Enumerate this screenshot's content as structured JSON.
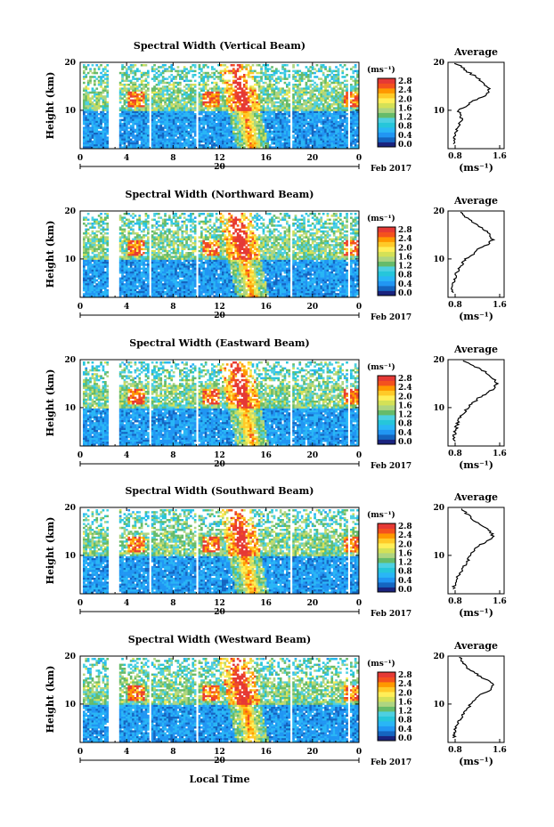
{
  "figure": {
    "date_label": "Feb 2017",
    "day_label": "20",
    "xlabel": "Local Time",
    "ylabel": "Height (km)",
    "units_label": "(ms⁻¹)",
    "avg_title": "Average",
    "avg_xlabel": "(ms⁻¹)",
    "colorbar_ticks": [
      "0.0",
      "0.4",
      "0.8",
      "1.2",
      "1.6",
      "2.0",
      "2.4",
      "2.8"
    ],
    "colorbar_colors": [
      "#1a237e",
      "#1565c0",
      "#2196f3",
      "#29b6f6",
      "#26c6da",
      "#4dd0e1",
      "#66bb6a",
      "#aed581",
      "#d4e157",
      "#ffee58",
      "#ffca28",
      "#ff9800",
      "#f4511e",
      "#e53935"
    ],
    "x_ticks": [
      "0",
      "4",
      "8",
      "12",
      "16",
      "20",
      "0"
    ],
    "y_ticks": [
      "20",
      "10"
    ],
    "avg_x_ticks": [
      "0.8",
      "1.6"
    ]
  },
  "chart_data": [
    {
      "type": "heatmap",
      "title": "Spectral Width (Vertical Beam)",
      "xlabel": "Local Time",
      "ylabel": "Height (km)",
      "xlim": [
        0,
        24
      ],
      "ylim": [
        2,
        20
      ],
      "colorbar_range": [
        0.0,
        2.8
      ],
      "enhancement": {
        "x_start": 13.0,
        "x_end": 15.0
      },
      "data_gaps_hours": [
        [
          2.3,
          3.3
        ],
        [
          5.8,
          6.0
        ],
        [
          9.9,
          10.1
        ],
        [
          17.9,
          18.1
        ],
        [
          22.9,
          23.1
        ]
      ],
      "average_profile": {
        "xlim": [
          0.6,
          1.6
        ],
        "height": [
          3,
          4,
          5,
          6,
          7,
          8,
          9,
          10,
          11,
          12,
          13,
          14,
          15,
          16,
          17,
          18,
          19,
          20
        ],
        "value": [
          0.72,
          0.7,
          0.75,
          0.74,
          0.8,
          0.85,
          0.82,
          0.78,
          0.95,
          1.05,
          1.25,
          1.35,
          1.3,
          1.2,
          1.1,
          0.95,
          0.85,
          0.7
        ]
      }
    },
    {
      "type": "heatmap",
      "title": "Spectral Width (Northward Beam)",
      "xlabel": "Local Time",
      "ylabel": "Height (km)",
      "xlim": [
        0,
        24
      ],
      "ylim": [
        2,
        20
      ],
      "colorbar_range": [
        0.0,
        2.8
      ],
      "enhancement": {
        "x_start": 13.0,
        "x_end": 15.0
      },
      "data_gaps_hours": [
        [
          2.3,
          3.3
        ],
        [
          5.8,
          6.0
        ],
        [
          9.9,
          10.1
        ],
        [
          17.9,
          18.1
        ],
        [
          22.9,
          23.1
        ]
      ],
      "average_profile": {
        "xlim": [
          0.6,
          1.6
        ],
        "height": [
          3,
          4,
          5,
          6,
          7,
          8,
          9,
          10,
          11,
          12,
          13,
          14,
          15,
          16,
          17,
          18,
          19,
          20
        ],
        "value": [
          0.7,
          0.68,
          0.7,
          0.72,
          0.75,
          0.8,
          0.85,
          0.92,
          1.05,
          1.1,
          1.3,
          1.4,
          1.35,
          1.25,
          1.15,
          1.0,
          0.9,
          0.8
        ]
      }
    },
    {
      "type": "heatmap",
      "title": "Spectral Width (Eastward Beam)",
      "xlabel": "Local Time",
      "ylabel": "Height (km)",
      "xlim": [
        0,
        24
      ],
      "ylim": [
        2,
        20
      ],
      "colorbar_range": [
        0.0,
        2.8
      ],
      "enhancement": {
        "x_start": 13.0,
        "x_end": 15.0
      },
      "data_gaps_hours": [
        [
          2.3,
          3.3
        ],
        [
          5.8,
          6.0
        ],
        [
          9.9,
          10.1
        ],
        [
          17.9,
          18.1
        ],
        [
          22.9,
          23.1
        ]
      ],
      "average_profile": {
        "xlim": [
          0.6,
          1.6
        ],
        "height": [
          3,
          4,
          5,
          6,
          7,
          8,
          9,
          10,
          11,
          12,
          13,
          14,
          15,
          16,
          17,
          18,
          19,
          20
        ],
        "value": [
          0.72,
          0.7,
          0.73,
          0.75,
          0.78,
          0.82,
          0.88,
          0.95,
          1.05,
          1.15,
          1.3,
          1.42,
          1.48,
          1.4,
          1.3,
          1.2,
          1.0,
          0.85
        ]
      }
    },
    {
      "type": "heatmap",
      "title": "Spectral Width (Southward Beam)",
      "xlabel": "Local Time",
      "ylabel": "Height (km)",
      "xlim": [
        0,
        24
      ],
      "ylim": [
        2,
        20
      ],
      "colorbar_range": [
        0.0,
        2.8
      ],
      "enhancement": {
        "x_start": 13.0,
        "x_end": 15.0
      },
      "data_gaps_hours": [
        [
          2.3,
          3.3
        ],
        [
          5.8,
          6.0
        ],
        [
          9.9,
          10.1
        ],
        [
          17.9,
          18.1
        ],
        [
          22.9,
          23.1
        ]
      ],
      "average_profile": {
        "xlim": [
          0.6,
          1.6
        ],
        "height": [
          3,
          4,
          5,
          6,
          7,
          8,
          9,
          10,
          11,
          12,
          13,
          14,
          15,
          16,
          17,
          18,
          19,
          20
        ],
        "value": [
          0.7,
          0.72,
          0.75,
          0.8,
          0.85,
          0.9,
          0.95,
          1.0,
          1.05,
          1.15,
          1.3,
          1.4,
          1.35,
          1.25,
          1.1,
          1.0,
          0.9,
          0.8
        ]
      }
    },
    {
      "type": "heatmap",
      "title": "Spectral Width (Westward Beam)",
      "xlabel": "Local Time",
      "ylabel": "Height (km)",
      "xlim": [
        0,
        24
      ],
      "ylim": [
        2,
        20
      ],
      "colorbar_range": [
        0.0,
        2.8
      ],
      "enhancement": {
        "x_start": 13.0,
        "x_end": 15.0
      },
      "data_gaps_hours": [
        [
          2.3,
          3.3
        ],
        [
          5.8,
          6.0
        ],
        [
          9.9,
          10.1
        ],
        [
          17.9,
          18.1
        ],
        [
          22.9,
          23.1
        ]
      ],
      "average_profile": {
        "xlim": [
          0.6,
          1.6
        ],
        "height": [
          3,
          4,
          5,
          6,
          7,
          8,
          9,
          10,
          11,
          12,
          13,
          14,
          15,
          16,
          17,
          18,
          19,
          20
        ],
        "value": [
          0.7,
          0.72,
          0.74,
          0.78,
          0.82,
          0.88,
          0.95,
          1.0,
          1.1,
          1.2,
          1.35,
          1.4,
          1.3,
          1.15,
          1.0,
          0.9,
          0.85,
          0.8
        ]
      }
    }
  ]
}
